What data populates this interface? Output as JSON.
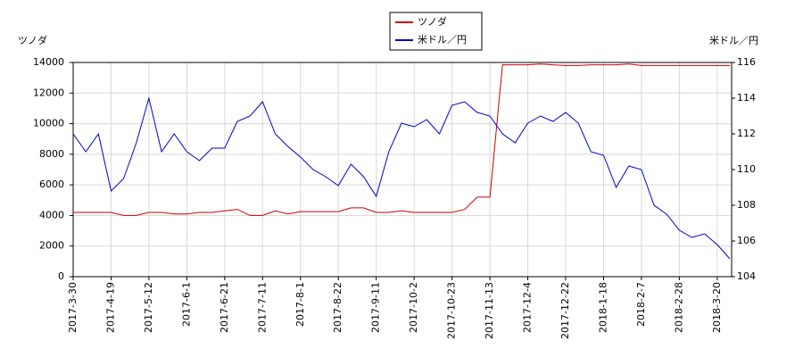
{
  "chart_data": {
    "type": "line",
    "y_label": "ツノダ",
    "y2_label": "米ドル／円",
    "categories": [
      "2017-3-30",
      null,
      null,
      "2017-4-19",
      null,
      null,
      "2017-5-12",
      null,
      null,
      "2017-6-1",
      null,
      null,
      "2017-6-21",
      null,
      null,
      "2017-7-11",
      null,
      null,
      "2017-8-1",
      null,
      null,
      "2017-8-22",
      null,
      null,
      "2017-9-11",
      null,
      null,
      "2017-10-2",
      null,
      null,
      "2017-10-23",
      null,
      null,
      "2017-11-13",
      null,
      null,
      "2017-12-4",
      null,
      null,
      "2017-12-22",
      null,
      null,
      "2018-1-18",
      null,
      null,
      "2018-2-7",
      null,
      null,
      "2018-2-28",
      null,
      null,
      "2018-3-20",
      null
    ],
    "series": [
      {
        "name": "ツノダ",
        "color": "#cc0000",
        "axis": "y",
        "values": [
          4200,
          4200,
          4200,
          4200,
          4000,
          4000,
          4200,
          4200,
          4100,
          4100,
          4200,
          4200,
          4300,
          4400,
          4000,
          4000,
          4300,
          4100,
          4250,
          4250,
          4250,
          4250,
          4500,
          4500,
          4200,
          4200,
          4300,
          4200,
          4200,
          4200,
          4200,
          4400,
          5200,
          5200,
          13850,
          13850,
          13850,
          13900,
          13850,
          13800,
          13800,
          13850,
          13850,
          13850,
          13900,
          13800,
          13800,
          13800,
          13800,
          13800,
          13800,
          13800,
          13800
        ]
      },
      {
        "name": "米ドル／円",
        "color": "#0000cc",
        "axis": "y2",
        "values": [
          112.0,
          111.0,
          112.0,
          108.8,
          109.5,
          111.5,
          114.0,
          111.0,
          112.0,
          111.0,
          110.5,
          111.2,
          111.2,
          112.7,
          113.0,
          113.8,
          112.0,
          111.3,
          110.7,
          110.0,
          109.6,
          109.1,
          110.3,
          109.6,
          108.5,
          111.0,
          112.6,
          112.4,
          112.8,
          112.0,
          113.6,
          113.8,
          113.2,
          113.0,
          112.0,
          111.5,
          112.6,
          113.0,
          112.7,
          113.2,
          112.6,
          111.0,
          110.8,
          109.0,
          110.2,
          110.0,
          108.0,
          107.5,
          106.6,
          106.2,
          106.4,
          105.8,
          105.0
        ]
      }
    ],
    "ylim": [
      0,
      14000
    ],
    "yticks": [
      0,
      2000,
      4000,
      6000,
      8000,
      10000,
      12000,
      14000
    ],
    "y2lim": [
      104,
      116
    ],
    "y2ticks": [
      104,
      106,
      108,
      110,
      112,
      114,
      116
    ],
    "grid": true
  }
}
